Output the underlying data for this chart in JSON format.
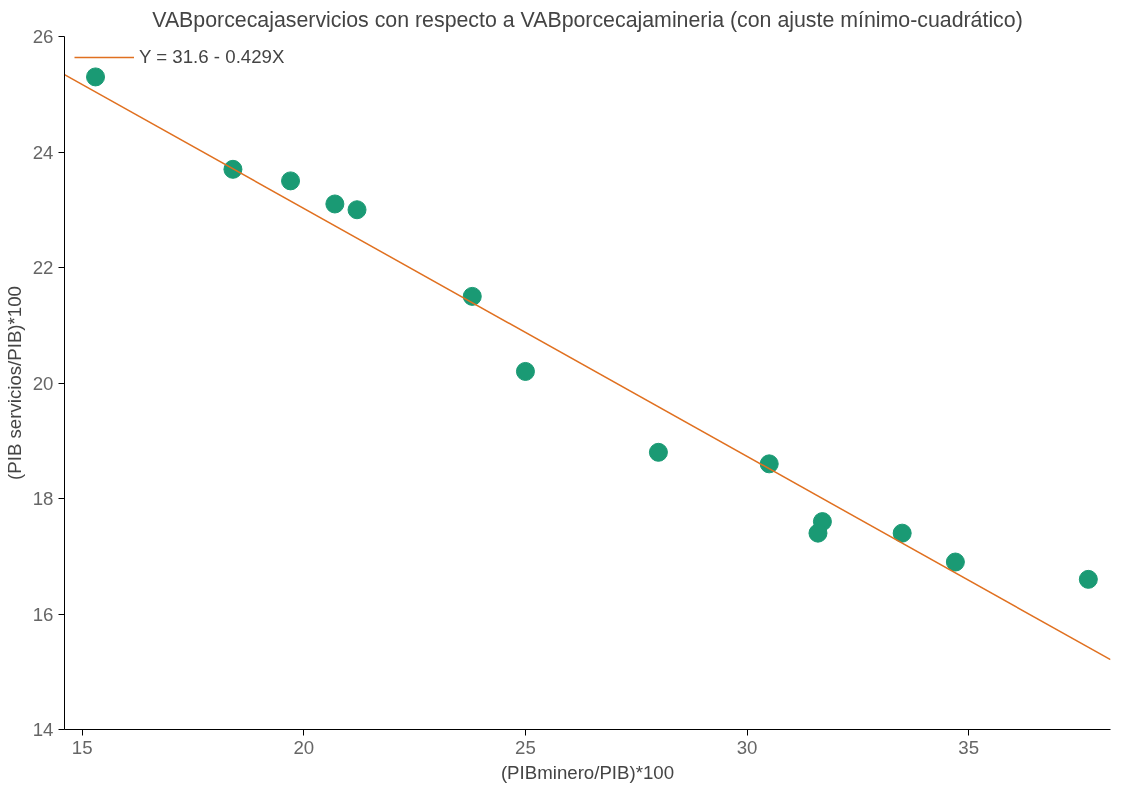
{
  "chart_data": {
    "type": "scatter",
    "title": "VABporcecajaservicios con respecto a VABporcecajamineria (con ajuste mínimo-cuadrático)",
    "xlabel": "(PIBminero/PIB)*100",
    "ylabel": "(PIB servicios/PIB)*100",
    "xlim": [
      14.6,
      38.2
    ],
    "xticks": [
      15,
      20,
      25,
      30,
      35
    ],
    "ylim": [
      14,
      26
    ],
    "yticks": [
      14,
      16,
      18,
      20,
      22,
      24,
      26
    ],
    "grid": false,
    "legend": "top left",
    "series": [
      {
        "marker": "circle",
        "color": "#1a9a74",
        "x": [
          15.3,
          18.4,
          19.7,
          20.7,
          21.2,
          23.8,
          25.0,
          28.0,
          30.5,
          31.7,
          31.6,
          33.5,
          34.7,
          37.7
        ],
        "values": [
          25.3,
          23.7,
          23.5,
          23.1,
          23.0,
          21.5,
          20.2,
          18.8,
          18.6,
          17.6,
          17.4,
          17.4,
          16.9,
          16.6
        ]
      },
      {
        "type": "line",
        "name": "Y = 31.6 - 0.429X",
        "color": "#e07020",
        "x": [
          14.6,
          38.2
        ],
        "values": [
          25.34,
          15.21
        ]
      }
    ]
  }
}
